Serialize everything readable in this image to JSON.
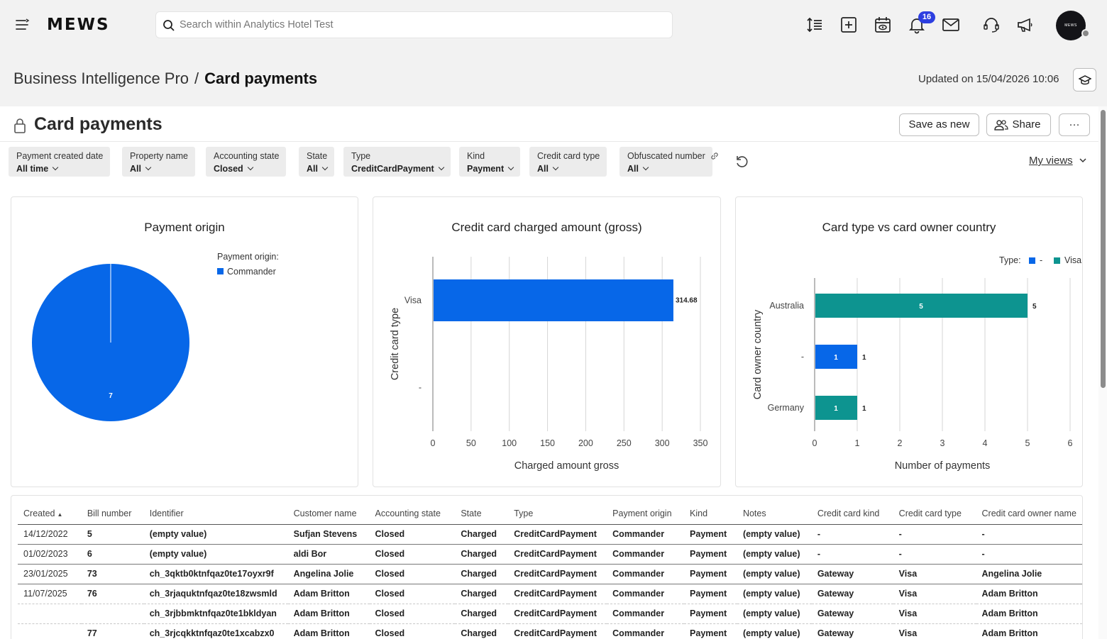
{
  "topbar": {
    "logo": "MEWS",
    "search_placeholder": "Search within Analytics Hotel Test",
    "notifications_count": "16",
    "avatar_text": "MEWS"
  },
  "header": {
    "breadcrumb_parent": "Business Intelligence Pro",
    "breadcrumb_sep": "/",
    "breadcrumb_current": "Card payments",
    "updated": "Updated on 15/04/2026 10:06"
  },
  "report": {
    "title": "Card payments",
    "save_as_new": "Save as new",
    "share": "Share",
    "more": "···",
    "my_views": "My views"
  },
  "filters": [
    {
      "label": "Payment created date",
      "value": "All time"
    },
    {
      "label": "Property name",
      "value": "All"
    },
    {
      "label": "Accounting state",
      "value": "Closed"
    },
    {
      "label": "State",
      "value": "All"
    },
    {
      "label": "Type",
      "value": "CreditCardPayment"
    },
    {
      "label": "Kind",
      "value": "Payment"
    },
    {
      "label": "Credit card type",
      "value": "All"
    },
    {
      "label": "Obfuscated number",
      "value": "All"
    }
  ],
  "colors": {
    "blue": "#0767e8",
    "teal": "#0d9490"
  },
  "chart_data": [
    {
      "type": "pie",
      "title": "Payment origin",
      "legend_title": "Payment origin:",
      "legend_position": "top-right",
      "slices": [
        {
          "label": "Commander",
          "value": 7
        }
      ]
    },
    {
      "type": "bar",
      "orientation": "horizontal",
      "title": "Credit card charged amount (gross)",
      "categories": [
        "Visa",
        "-"
      ],
      "values": [
        314.68,
        0
      ],
      "value_labels": [
        "314.68",
        ""
      ],
      "xlabel": "Charged amount gross",
      "ylabel": "Credit card type",
      "xlim": [
        0,
        350
      ],
      "xticks": [
        "0",
        "50",
        "100",
        "150",
        "200",
        "250",
        "300",
        "350"
      ],
      "grid": true
    },
    {
      "type": "bar",
      "orientation": "horizontal",
      "title": "Card type vs card owner country",
      "categories": [
        "Australia",
        "-",
        "Germany"
      ],
      "series": [
        {
          "name": "-",
          "values": [
            0,
            1,
            0
          ]
        },
        {
          "name": "Visa",
          "values": [
            5,
            0,
            1
          ]
        }
      ],
      "legend_title": "Type:",
      "legend_position": "top-right",
      "xlabel": "Number of payments",
      "ylabel": "Card owner country",
      "xlim": [
        0,
        6
      ],
      "xticks": [
        "0",
        "1",
        "2",
        "3",
        "4",
        "5",
        "6"
      ],
      "grid": true
    }
  ],
  "table": {
    "columns": [
      "Created",
      "Bill number",
      "Identifier",
      "Customer name",
      "Accounting state",
      "State",
      "Type",
      "Payment origin",
      "Kind",
      "Notes",
      "Credit card kind",
      "Credit card type",
      "Credit card owner name"
    ],
    "rows": [
      {
        "created": "14/12/2022",
        "cells": [
          "5",
          "(empty value)",
          "Sufjan Stevens",
          "Closed",
          "Charged",
          "CreditCardPayment",
          "Commander",
          "Payment",
          "(empty value)",
          "-",
          "-",
          "-"
        ]
      },
      {
        "created": "01/02/2023",
        "cells": [
          "6",
          "(empty value)",
          "aldi Bor",
          "Closed",
          "Charged",
          "CreditCardPayment",
          "Commander",
          "Payment",
          "(empty value)",
          "-",
          "-",
          "-"
        ]
      },
      {
        "created": "23/01/2025",
        "cells": [
          "73",
          "ch_3qktb0ktnfqaz0te17oyxr9f",
          "Angelina Jolie",
          "Closed",
          "Charged",
          "CreditCardPayment",
          "Commander",
          "Payment",
          "(empty value)",
          "Gateway",
          "Visa",
          "Angelina Jolie"
        ]
      },
      {
        "created": "11/07/2025",
        "cells": [
          "76",
          "ch_3rjaquktnfqaz0te18zwsmld",
          "Adam Britton",
          "Closed",
          "Charged",
          "CreditCardPayment",
          "Commander",
          "Payment",
          "(empty value)",
          "Gateway",
          "Visa",
          "Adam Britton"
        ]
      },
      {
        "created": "",
        "cells": [
          "",
          "ch_3rjbbmktnfqaz0te1bkldyan",
          "Adam Britton",
          "Closed",
          "Charged",
          "CreditCardPayment",
          "Commander",
          "Payment",
          "(empty value)",
          "Gateway",
          "Visa",
          "Adam Britton"
        ]
      },
      {
        "created": "",
        "cells": [
          "77",
          "ch_3rjcqkktnfqaz0te1xcabzx0",
          "Adam Britton",
          "Closed",
          "Charged",
          "CreditCardPayment",
          "Commander",
          "Payment",
          "(empty value)",
          "Gateway",
          "Visa",
          "Adam Britton"
        ]
      }
    ]
  }
}
